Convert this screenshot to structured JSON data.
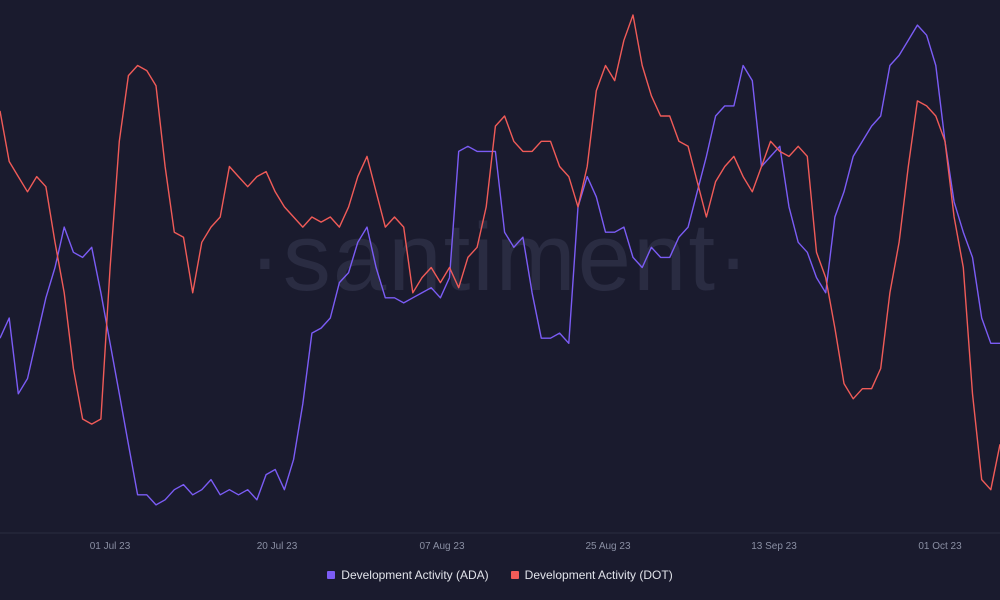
{
  "watermark": "·santiment·",
  "chart_data": {
    "type": "line",
    "title": "",
    "xlabel": "",
    "ylabel": "",
    "x_ticks": [
      "01 Jul 23",
      "20 Jul 23",
      "07 Aug 23",
      "25 Aug 23",
      "13 Sep 23",
      "01 Oct 23"
    ],
    "grid": false,
    "legend_position": "bottom-center",
    "ylim": [
      0,
      100
    ],
    "series": [
      {
        "name": "Development Activity (ADA)",
        "color": "#7b5cf5",
        "points": [
          [
            "2023-06-23",
            36
          ],
          [
            "2023-06-24",
            40
          ],
          [
            "2023-06-25",
            25
          ],
          [
            "2023-06-26",
            28
          ],
          [
            "2023-06-27",
            36
          ],
          [
            "2023-06-28",
            44
          ],
          [
            "2023-06-29",
            50
          ],
          [
            "2023-06-30",
            58
          ],
          [
            "2023-07-01",
            53
          ],
          [
            "2023-07-02",
            52
          ],
          [
            "2023-07-03",
            54
          ],
          [
            "2023-07-04",
            45
          ],
          [
            "2023-07-05",
            35
          ],
          [
            "2023-07-06",
            25
          ],
          [
            "2023-07-07",
            15
          ],
          [
            "2023-07-08",
            5
          ],
          [
            "2023-07-09",
            5
          ],
          [
            "2023-07-10",
            3
          ],
          [
            "2023-07-11",
            4
          ],
          [
            "2023-07-12",
            6
          ],
          [
            "2023-07-13",
            7
          ],
          [
            "2023-07-14",
            5
          ],
          [
            "2023-07-15",
            6
          ],
          [
            "2023-07-16",
            8
          ],
          [
            "2023-07-17",
            5
          ],
          [
            "2023-07-18",
            6
          ],
          [
            "2023-07-19",
            5
          ],
          [
            "2023-07-20",
            6
          ],
          [
            "2023-07-21",
            4
          ],
          [
            "2023-07-22",
            9
          ],
          [
            "2023-07-23",
            10
          ],
          [
            "2023-07-24",
            6
          ],
          [
            "2023-07-25",
            12
          ],
          [
            "2023-07-26",
            23
          ],
          [
            "2023-07-27",
            37
          ],
          [
            "2023-07-28",
            38
          ],
          [
            "2023-07-29",
            40
          ],
          [
            "2023-07-30",
            47
          ],
          [
            "2023-07-31",
            49
          ],
          [
            "2023-08-01",
            55
          ],
          [
            "2023-08-02",
            58
          ],
          [
            "2023-08-03",
            50
          ],
          [
            "2023-08-04",
            44
          ],
          [
            "2023-08-05",
            44
          ],
          [
            "2023-08-06",
            43
          ],
          [
            "2023-08-07",
            44
          ],
          [
            "2023-08-08",
            45
          ],
          [
            "2023-08-09",
            46
          ],
          [
            "2023-08-10",
            44
          ],
          [
            "2023-08-11",
            48
          ],
          [
            "2023-08-12",
            73
          ],
          [
            "2023-08-13",
            74
          ],
          [
            "2023-08-14",
            73
          ],
          [
            "2023-08-15",
            73
          ],
          [
            "2023-08-16",
            73
          ],
          [
            "2023-08-17",
            57
          ],
          [
            "2023-08-18",
            54
          ],
          [
            "2023-08-19",
            56
          ],
          [
            "2023-08-20",
            45
          ],
          [
            "2023-08-21",
            36
          ],
          [
            "2023-08-22",
            36
          ],
          [
            "2023-08-23",
            37
          ],
          [
            "2023-08-24",
            35
          ],
          [
            "2023-08-25",
            62
          ],
          [
            "2023-08-26",
            68
          ],
          [
            "2023-08-27",
            64
          ],
          [
            "2023-08-28",
            57
          ],
          [
            "2023-08-29",
            57
          ],
          [
            "2023-08-30",
            58
          ],
          [
            "2023-08-31",
            52
          ],
          [
            "2023-09-01",
            50
          ],
          [
            "2023-09-02",
            54
          ],
          [
            "2023-09-03",
            52
          ],
          [
            "2023-09-04",
            52
          ],
          [
            "2023-09-05",
            56
          ],
          [
            "2023-09-06",
            58
          ],
          [
            "2023-09-07",
            65
          ],
          [
            "2023-09-08",
            72
          ],
          [
            "2023-09-09",
            80
          ],
          [
            "2023-09-10",
            82
          ],
          [
            "2023-09-11",
            82
          ],
          [
            "2023-09-12",
            90
          ],
          [
            "2023-09-13",
            87
          ],
          [
            "2023-09-14",
            70
          ],
          [
            "2023-09-15",
            72
          ],
          [
            "2023-09-16",
            74
          ],
          [
            "2023-09-17",
            62
          ],
          [
            "2023-09-18",
            55
          ],
          [
            "2023-09-19",
            53
          ],
          [
            "2023-09-20",
            48
          ],
          [
            "2023-09-21",
            45
          ],
          [
            "2023-09-22",
            60
          ],
          [
            "2023-09-23",
            65
          ],
          [
            "2023-09-24",
            72
          ],
          [
            "2023-09-25",
            75
          ],
          [
            "2023-09-26",
            78
          ],
          [
            "2023-09-27",
            80
          ],
          [
            "2023-09-28",
            90
          ],
          [
            "2023-09-29",
            92
          ],
          [
            "2023-09-30",
            95
          ],
          [
            "2023-10-01",
            98
          ],
          [
            "2023-10-02",
            96
          ],
          [
            "2023-10-03",
            90
          ],
          [
            "2023-10-04",
            75
          ],
          [
            "2023-10-05",
            63
          ],
          [
            "2023-10-06",
            57
          ],
          [
            "2023-10-07",
            52
          ],
          [
            "2023-10-08",
            40
          ],
          [
            "2023-10-09",
            35
          ],
          [
            "2023-10-10",
            35
          ]
        ]
      },
      {
        "name": "Development Activity (DOT)",
        "color": "#f05b58",
        "points": [
          [
            "2023-06-23",
            81
          ],
          [
            "2023-06-24",
            71
          ],
          [
            "2023-06-25",
            68
          ],
          [
            "2023-06-26",
            65
          ],
          [
            "2023-06-27",
            68
          ],
          [
            "2023-06-28",
            66
          ],
          [
            "2023-06-29",
            55
          ],
          [
            "2023-06-30",
            45
          ],
          [
            "2023-07-01",
            30
          ],
          [
            "2023-07-02",
            20
          ],
          [
            "2023-07-03",
            19
          ],
          [
            "2023-07-04",
            20
          ],
          [
            "2023-07-05",
            50
          ],
          [
            "2023-07-06",
            75
          ],
          [
            "2023-07-07",
            88
          ],
          [
            "2023-07-08",
            90
          ],
          [
            "2023-07-09",
            89
          ],
          [
            "2023-07-10",
            86
          ],
          [
            "2023-07-11",
            70
          ],
          [
            "2023-07-12",
            57
          ],
          [
            "2023-07-13",
            56
          ],
          [
            "2023-07-14",
            45
          ],
          [
            "2023-07-15",
            55
          ],
          [
            "2023-07-16",
            58
          ],
          [
            "2023-07-17",
            60
          ],
          [
            "2023-07-18",
            70
          ],
          [
            "2023-07-19",
            68
          ],
          [
            "2023-07-20",
            66
          ],
          [
            "2023-07-21",
            68
          ],
          [
            "2023-07-22",
            69
          ],
          [
            "2023-07-23",
            65
          ],
          [
            "2023-07-24",
            62
          ],
          [
            "2023-07-25",
            60
          ],
          [
            "2023-07-26",
            58
          ],
          [
            "2023-07-27",
            60
          ],
          [
            "2023-07-28",
            59
          ],
          [
            "2023-07-29",
            60
          ],
          [
            "2023-07-30",
            58
          ],
          [
            "2023-07-31",
            62
          ],
          [
            "2023-08-01",
            68
          ],
          [
            "2023-08-02",
            72
          ],
          [
            "2023-08-03",
            65
          ],
          [
            "2023-08-04",
            58
          ],
          [
            "2023-08-05",
            60
          ],
          [
            "2023-08-06",
            58
          ],
          [
            "2023-08-07",
            45
          ],
          [
            "2023-08-08",
            48
          ],
          [
            "2023-08-09",
            50
          ],
          [
            "2023-08-10",
            47
          ],
          [
            "2023-08-11",
            50
          ],
          [
            "2023-08-12",
            46
          ],
          [
            "2023-08-13",
            52
          ],
          [
            "2023-08-14",
            54
          ],
          [
            "2023-08-15",
            62
          ],
          [
            "2023-08-16",
            78
          ],
          [
            "2023-08-17",
            80
          ],
          [
            "2023-08-18",
            75
          ],
          [
            "2023-08-19",
            73
          ],
          [
            "2023-08-20",
            73
          ],
          [
            "2023-08-21",
            75
          ],
          [
            "2023-08-22",
            75
          ],
          [
            "2023-08-23",
            70
          ],
          [
            "2023-08-24",
            68
          ],
          [
            "2023-08-25",
            62
          ],
          [
            "2023-08-26",
            70
          ],
          [
            "2023-08-27",
            85
          ],
          [
            "2023-08-28",
            90
          ],
          [
            "2023-08-29",
            87
          ],
          [
            "2023-08-30",
            95
          ],
          [
            "2023-08-31",
            100
          ],
          [
            "2023-09-01",
            90
          ],
          [
            "2023-09-02",
            84
          ],
          [
            "2023-09-03",
            80
          ],
          [
            "2023-09-04",
            80
          ],
          [
            "2023-09-05",
            75
          ],
          [
            "2023-09-06",
            74
          ],
          [
            "2023-09-07",
            67
          ],
          [
            "2023-09-08",
            60
          ],
          [
            "2023-09-09",
            67
          ],
          [
            "2023-09-10",
            70
          ],
          [
            "2023-09-11",
            72
          ],
          [
            "2023-09-12",
            68
          ],
          [
            "2023-09-13",
            65
          ],
          [
            "2023-09-14",
            70
          ],
          [
            "2023-09-15",
            75
          ],
          [
            "2023-09-16",
            73
          ],
          [
            "2023-09-17",
            72
          ],
          [
            "2023-09-18",
            74
          ],
          [
            "2023-09-19",
            72
          ],
          [
            "2023-09-20",
            53
          ],
          [
            "2023-09-21",
            48
          ],
          [
            "2023-09-22",
            38
          ],
          [
            "2023-09-23",
            27
          ],
          [
            "2023-09-24",
            24
          ],
          [
            "2023-09-25",
            26
          ],
          [
            "2023-09-26",
            26
          ],
          [
            "2023-09-27",
            30
          ],
          [
            "2023-09-28",
            45
          ],
          [
            "2023-09-29",
            55
          ],
          [
            "2023-09-30",
            70
          ],
          [
            "2023-10-01",
            83
          ],
          [
            "2023-10-02",
            82
          ],
          [
            "2023-10-03",
            80
          ],
          [
            "2023-10-04",
            75
          ],
          [
            "2023-10-05",
            60
          ],
          [
            "2023-10-06",
            50
          ],
          [
            "2023-10-07",
            25
          ],
          [
            "2023-10-08",
            8
          ],
          [
            "2023-10-09",
            6
          ],
          [
            "2023-10-10",
            15
          ]
        ]
      }
    ]
  }
}
